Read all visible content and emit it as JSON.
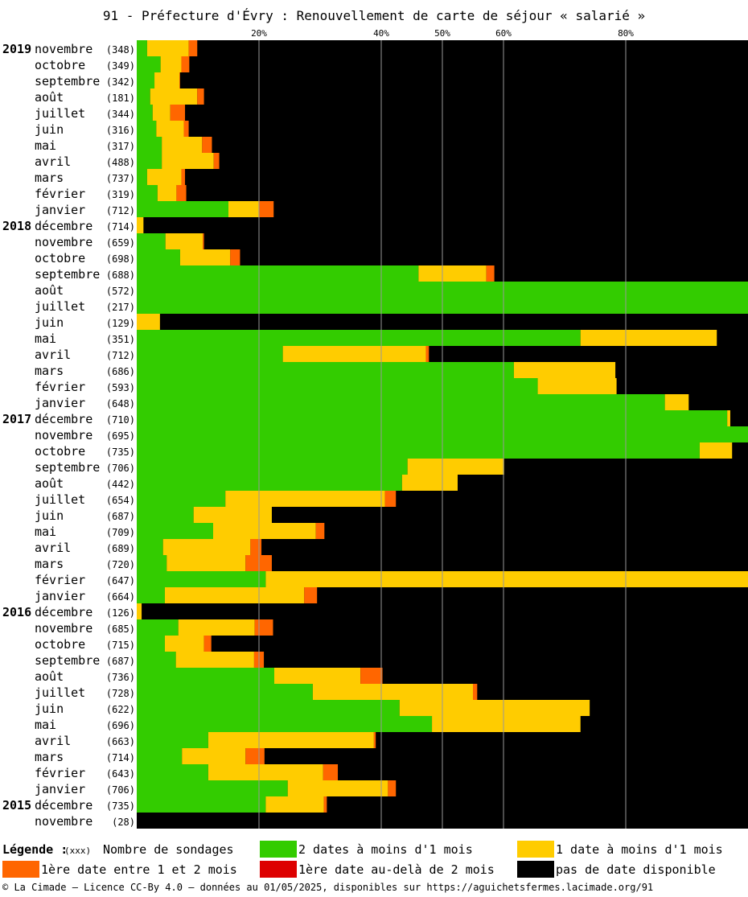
{
  "chart_data": {
    "type": "bar",
    "stacked": true,
    "orientation": "horizontal",
    "title": "91 - Préfecture d'Évry : Renouvellement de carte de séjour « salarié »",
    "x_ticks": [
      "20%",
      "40%",
      "50%",
      "60%",
      "80%"
    ],
    "x_tick_values": [
      20,
      40,
      50,
      60,
      80
    ],
    "xlim": [
      0,
      100
    ],
    "grid": "vertical lines at ticks",
    "rows": [
      {
        "year": "2019",
        "month": "novembre",
        "count": "(348)",
        "v": [
          1.7,
          6.8,
          1.4
        ]
      },
      {
        "year": "",
        "month": "octobre",
        "count": "(349)",
        "v": [
          3.9,
          3.4,
          1.3
        ]
      },
      {
        "year": "",
        "month": "septembre",
        "count": "(342)",
        "v": [
          2.9,
          4.1,
          0.1
        ]
      },
      {
        "year": "",
        "month": "août",
        "count": "(181)",
        "v": [
          2.2,
          7.7,
          1.1
        ]
      },
      {
        "year": "",
        "month": "juillet",
        "count": "(344)",
        "v": [
          2.6,
          2.9,
          2.4
        ]
      },
      {
        "year": "",
        "month": "juin",
        "count": "(316)",
        "v": [
          3.2,
          4.5,
          0.8
        ]
      },
      {
        "year": "",
        "month": "mai",
        "count": "(317)",
        "v": [
          4.1,
          6.6,
          1.6
        ]
      },
      {
        "year": "",
        "month": "avril",
        "count": "(488)",
        "v": [
          4.1,
          8.5,
          0.9
        ]
      },
      {
        "year": "",
        "month": "mars",
        "count": "(737)",
        "v": [
          1.7,
          5.6,
          0.6
        ]
      },
      {
        "year": "",
        "month": "février",
        "count": "(319)",
        "v": [
          3.4,
          3.1,
          1.6
        ]
      },
      {
        "year": "",
        "month": "janvier",
        "count": "(712)",
        "v": [
          15.0,
          5.0,
          2.4
        ]
      },
      {
        "year": "2018",
        "month": "décembre",
        "count": "(714)",
        "v": [
          0.0,
          1.1,
          0.0
        ]
      },
      {
        "year": "",
        "month": "novembre",
        "count": "(659)",
        "v": [
          4.7,
          6.1,
          0.2
        ]
      },
      {
        "year": "",
        "month": "octobre",
        "count": "(698)",
        "v": [
          7.1,
          8.2,
          1.6
        ]
      },
      {
        "year": "",
        "month": "septembre",
        "count": "(688)",
        "v": [
          46.1,
          11.1,
          1.3
        ]
      },
      {
        "year": "",
        "month": "août",
        "count": "(572)",
        "v": [
          100.0,
          0.0,
          0.0
        ]
      },
      {
        "year": "",
        "month": "juillet",
        "count": "(217)",
        "v": [
          100.0,
          0.0,
          0.0
        ]
      },
      {
        "year": "",
        "month": "juin",
        "count": "(129)",
        "v": [
          0.0,
          3.8,
          0.0
        ]
      },
      {
        "year": "",
        "month": "mai",
        "count": "(351)",
        "v": [
          72.6,
          22.3,
          0.0
        ]
      },
      {
        "year": "",
        "month": "avril",
        "count": "(712)",
        "v": [
          23.9,
          23.4,
          0.5
        ]
      },
      {
        "year": "",
        "month": "mars",
        "count": "(686)",
        "v": [
          61.7,
          16.6,
          0.0
        ]
      },
      {
        "year": "",
        "month": "février",
        "count": "(593)",
        "v": [
          65.6,
          12.9,
          0.0
        ]
      },
      {
        "year": "",
        "month": "janvier",
        "count": "(648)",
        "v": [
          86.4,
          3.9,
          0.0
        ]
      },
      {
        "year": "2017",
        "month": "décembre",
        "count": "(710)",
        "v": [
          96.6,
          0.5,
          0.0
        ]
      },
      {
        "year": "",
        "month": "novembre",
        "count": "(695)",
        "v": [
          100.0,
          0.0,
          0.0
        ]
      },
      {
        "year": "",
        "month": "octobre",
        "count": "(735)",
        "v": [
          92.1,
          5.3,
          0.0
        ]
      },
      {
        "year": "",
        "month": "septembre",
        "count": "(706)",
        "v": [
          44.3,
          15.8,
          0.0
        ]
      },
      {
        "year": "",
        "month": "août",
        "count": "(442)",
        "v": [
          43.4,
          9.1,
          0.0
        ]
      },
      {
        "year": "",
        "month": "juillet",
        "count": "(654)",
        "v": [
          14.5,
          26.1,
          1.8
        ]
      },
      {
        "year": "",
        "month": "juin",
        "count": "(687)",
        "v": [
          9.3,
          12.8,
          0.0
        ]
      },
      {
        "year": "",
        "month": "mai",
        "count": "(709)",
        "v": [
          12.5,
          16.8,
          1.4
        ]
      },
      {
        "year": "",
        "month": "avril",
        "count": "(689)",
        "v": [
          4.3,
          14.3,
          1.8
        ]
      },
      {
        "year": "",
        "month": "mars",
        "count": "(720)",
        "v": [
          4.9,
          12.9,
          4.3
        ]
      },
      {
        "year": "",
        "month": "février",
        "count": "(647)",
        "v": [
          21.1,
          78.9,
          0.0
        ]
      },
      {
        "year": "",
        "month": "janvier",
        "count": "(664)",
        "v": [
          4.6,
          22.8,
          2.1
        ]
      },
      {
        "year": "2016",
        "month": "décembre",
        "count": "(126)",
        "v": [
          0.0,
          0.8,
          0.0
        ]
      },
      {
        "year": "",
        "month": "novembre",
        "count": "(685)",
        "v": [
          6.8,
          12.5,
          3.0
        ]
      },
      {
        "year": "",
        "month": "octobre",
        "count": "(715)",
        "v": [
          4.6,
          6.4,
          1.2
        ]
      },
      {
        "year": "",
        "month": "septembre",
        "count": "(687)",
        "v": [
          6.4,
          12.8,
          1.6
        ]
      },
      {
        "year": "",
        "month": "août",
        "count": "(736)",
        "v": [
          22.5,
          14.1,
          3.6
        ]
      },
      {
        "year": "",
        "month": "juillet",
        "count": "(728)",
        "v": [
          28.8,
          26.2,
          0.7
        ]
      },
      {
        "year": "",
        "month": "juin",
        "count": "(622)",
        "v": [
          43.0,
          31.1,
          0.0
        ]
      },
      {
        "year": "",
        "month": "mai",
        "count": "(696)",
        "v": [
          48.3,
          24.3,
          0.0
        ]
      },
      {
        "year": "",
        "month": "avril",
        "count": "(663)",
        "v": [
          11.7,
          27.1,
          0.3
        ]
      },
      {
        "year": "",
        "month": "mars",
        "count": "(714)",
        "v": [
          7.4,
          10.4,
          3.1
        ]
      },
      {
        "year": "",
        "month": "février",
        "count": "(643)",
        "v": [
          11.7,
          18.8,
          2.4
        ]
      },
      {
        "year": "",
        "month": "janvier",
        "count": "(706)",
        "v": [
          24.7,
          16.4,
          1.3
        ]
      },
      {
        "year": "2015",
        "month": "décembre",
        "count": "(735)",
        "v": [
          21.1,
          9.5,
          0.5
        ]
      },
      {
        "year": "",
        "month": "novembre",
        "count": "(28)",
        "v": [
          0.0,
          0.0,
          0.0
        ]
      }
    ],
    "series": [
      {
        "name": "2 dates à moins d'1 mois",
        "color": "#33cc00"
      },
      {
        "name": "1 date à moins d'1 mois",
        "color": "#ffcc00"
      },
      {
        "name": "1ère date entre 1 et 2 mois",
        "color": "#ff6600"
      },
      {
        "name": "1ère date au-delà de 2 mois",
        "color": "#dd0000"
      },
      {
        "name": "pas de date disponible",
        "color": "#000000"
      }
    ],
    "legend_placement": "bottom"
  },
  "legend": {
    "title": "Légende :",
    "count_hint": "(xxx)",
    "count_label": "Nombre de sondages"
  },
  "footer": "© La Cimade — Licence CC-By 4.0 — données au 01/05/2025, disponibles sur https://aguichetsfermes.lacimade.org/91"
}
